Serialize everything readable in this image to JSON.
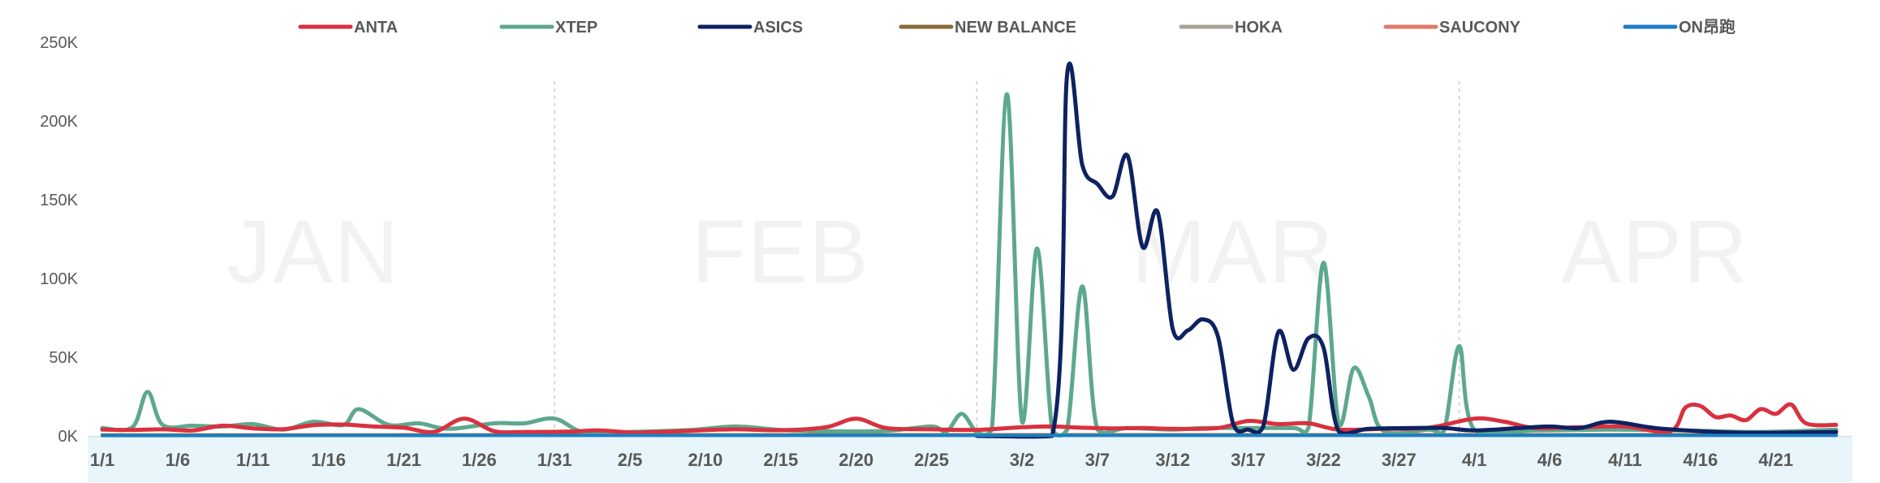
{
  "chart_data": {
    "type": "line",
    "title": "",
    "xlabel": "",
    "ylabel": "",
    "y_ticks": [
      "0K",
      "50K",
      "100K",
      "150K",
      "200K",
      "250K"
    ],
    "ylim": [
      0,
      250000
    ],
    "x_tick_labels": [
      "1/1",
      "1/6",
      "1/11",
      "1/16",
      "1/21",
      "1/26",
      "1/31",
      "2/5",
      "2/10",
      "2/15",
      "2/20",
      "2/25",
      "3/2",
      "3/7",
      "3/12",
      "3/17",
      "3/22",
      "3/27",
      "4/1",
      "4/6",
      "4/11",
      "4/16",
      "4/21"
    ],
    "month_labels": [
      {
        "text": "JAN",
        "center_date": "1/15"
      },
      {
        "text": "FEB",
        "center_date": "2/15"
      },
      {
        "text": "MAR",
        "center_date": "3/16"
      },
      {
        "text": "APR",
        "center_date": "4/13"
      }
    ],
    "month_boundaries": [
      "1/31",
      "2/28",
      "3/31"
    ],
    "legend_position": "top",
    "series": [
      {
        "name": "ANTA",
        "color": "#d9313f",
        "points": [
          [
            "1/1",
            4000
          ],
          [
            "1/3",
            3800
          ],
          [
            "1/5",
            4200
          ],
          [
            "1/7",
            3500
          ],
          [
            "1/9",
            6500
          ],
          [
            "1/11",
            4800
          ],
          [
            "1/13",
            4300
          ],
          [
            "1/15",
            6800
          ],
          [
            "1/17",
            7200
          ],
          [
            "1/19",
            6000
          ],
          [
            "1/21",
            5200
          ],
          [
            "1/23",
            2600
          ],
          [
            "1/25",
            11000
          ],
          [
            "1/27",
            3000
          ],
          [
            "1/29",
            2500
          ],
          [
            "2/1",
            2800
          ],
          [
            "2/3",
            3500
          ],
          [
            "2/5",
            2200
          ],
          [
            "2/7",
            2600
          ],
          [
            "2/9",
            3300
          ],
          [
            "2/12",
            4200
          ],
          [
            "2/15",
            3600
          ],
          [
            "2/18",
            5500
          ],
          [
            "2/20",
            11000
          ],
          [
            "2/22",
            5000
          ],
          [
            "2/25",
            4200
          ],
          [
            "2/28",
            3800
          ],
          [
            "3/2",
            5500
          ],
          [
            "3/4",
            6000
          ],
          [
            "3/6",
            5200
          ],
          [
            "3/8",
            4800
          ],
          [
            "3/10",
            5000
          ],
          [
            "3/12",
            4500
          ],
          [
            "3/15",
            5000
          ],
          [
            "3/17",
            9500
          ],
          [
            "3/19",
            7500
          ],
          [
            "3/21",
            8000
          ],
          [
            "3/23",
            4000
          ],
          [
            "3/26",
            4500
          ],
          [
            "3/29",
            5200
          ],
          [
            "4/1",
            11000
          ],
          [
            "4/3",
            9000
          ],
          [
            "4/5",
            5000
          ],
          [
            "4/8",
            5500
          ],
          [
            "4/11",
            6000
          ],
          [
            "4/14",
            3000
          ],
          [
            "4/15",
            18000
          ],
          [
            "4/16",
            19000
          ],
          [
            "4/17",
            12000
          ],
          [
            "4/18",
            13000
          ],
          [
            "4/19",
            10000
          ],
          [
            "4/20",
            17000
          ],
          [
            "4/21",
            14000
          ],
          [
            "4/22",
            20000
          ],
          [
            "4/23",
            8000
          ],
          [
            "4/25",
            7000
          ]
        ]
      },
      {
        "name": "XTEP",
        "color": "#5da88e",
        "points": [
          [
            "1/1",
            5000
          ],
          [
            "1/3",
            5500
          ],
          [
            "1/4",
            28000
          ],
          [
            "1/5",
            7000
          ],
          [
            "1/7",
            6500
          ],
          [
            "1/9",
            6000
          ],
          [
            "1/11",
            7500
          ],
          [
            "1/13",
            4000
          ],
          [
            "1/15",
            9000
          ],
          [
            "1/17",
            7000
          ],
          [
            "1/18",
            17000
          ],
          [
            "1/20",
            7000
          ],
          [
            "1/22",
            8000
          ],
          [
            "1/24",
            4500
          ],
          [
            "1/27",
            8000
          ],
          [
            "1/29",
            8000
          ],
          [
            "1/31",
            11000
          ],
          [
            "2/2",
            2000
          ],
          [
            "2/5",
            2500
          ],
          [
            "2/9",
            3800
          ],
          [
            "2/12",
            6000
          ],
          [
            "2/15",
            3800
          ],
          [
            "2/18",
            3000
          ],
          [
            "2/22",
            3200
          ],
          [
            "2/25",
            6000
          ],
          [
            "2/26",
            2800
          ],
          [
            "2/27",
            14000
          ],
          [
            "2/28",
            2500
          ],
          [
            "2/29",
            4000
          ],
          [
            "3/1",
            217000
          ],
          [
            "3/2",
            9000
          ],
          [
            "3/3",
            119000
          ],
          [
            "3/4",
            4000
          ],
          [
            "3/5",
            4000
          ],
          [
            "3/6",
            95000
          ],
          [
            "3/7",
            4000
          ],
          [
            "3/9",
            5000
          ],
          [
            "3/12",
            4000
          ],
          [
            "3/14",
            5000
          ],
          [
            "3/17",
            5000
          ],
          [
            "3/20",
            5000
          ],
          [
            "3/21",
            5000
          ],
          [
            "3/22",
            110000
          ],
          [
            "3/23",
            8000
          ],
          [
            "3/24",
            43000
          ],
          [
            "3/25",
            25000
          ],
          [
            "3/26",
            3000
          ],
          [
            "3/29",
            4000
          ],
          [
            "3/30",
            3500
          ],
          [
            "3/31",
            57000
          ],
          [
            "4/1",
            4000
          ],
          [
            "4/5",
            3500
          ],
          [
            "4/10",
            4000
          ],
          [
            "4/15",
            3500
          ],
          [
            "4/20",
            2500
          ],
          [
            "4/25",
            4000
          ]
        ]
      },
      {
        "name": "ASICS",
        "color": "#0e2260",
        "points": [
          [
            "2/28",
            0
          ],
          [
            "3/4",
            0
          ],
          [
            "3/5",
            230000
          ],
          [
            "3/6",
            172000
          ],
          [
            "3/7",
            160000
          ],
          [
            "3/8",
            152000
          ],
          [
            "3/9",
            178000
          ],
          [
            "3/10",
            120000
          ],
          [
            "3/11",
            142000
          ],
          [
            "3/12",
            68000
          ],
          [
            "3/13",
            67000
          ],
          [
            "3/14",
            74000
          ],
          [
            "3/15",
            63000
          ],
          [
            "3/16",
            8000
          ],
          [
            "3/17",
            4000
          ],
          [
            "3/18",
            6000
          ],
          [
            "3/19",
            66000
          ],
          [
            "3/20",
            42000
          ],
          [
            "3/21",
            62000
          ],
          [
            "3/22",
            56000
          ],
          [
            "3/23",
            3000
          ],
          [
            "3/25",
            4500
          ],
          [
            "3/28",
            5000
          ],
          [
            "3/30",
            5000
          ],
          [
            "4/1",
            3500
          ],
          [
            "4/4",
            5000
          ],
          [
            "4/6",
            6000
          ],
          [
            "4/8",
            5000
          ],
          [
            "4/10",
            9000
          ],
          [
            "4/13",
            5000
          ],
          [
            "4/16",
            3000
          ],
          [
            "4/19",
            2000
          ],
          [
            "4/25",
            2500
          ]
        ]
      },
      {
        "name": "NEW BALANCE",
        "color": "#8a6a3b",
        "points": [
          [
            "1/1",
            600
          ],
          [
            "2/1",
            700
          ],
          [
            "3/1",
            700
          ],
          [
            "4/1",
            700
          ],
          [
            "4/25",
            800
          ]
        ]
      },
      {
        "name": "HOKA",
        "color": "#a9a29a",
        "points": [
          [
            "1/1",
            500
          ],
          [
            "2/1",
            600
          ],
          [
            "3/1",
            700
          ],
          [
            "4/1",
            600
          ],
          [
            "4/25",
            700
          ]
        ]
      },
      {
        "name": "SAUCONY",
        "color": "#e07b6a",
        "points": [
          [
            "1/1",
            400
          ],
          [
            "2/1",
            500
          ],
          [
            "3/1",
            500
          ],
          [
            "4/1",
            600
          ],
          [
            "4/25",
            600
          ]
        ]
      },
      {
        "name": "ON昂跑",
        "color": "#1b7fc4",
        "points": [
          [
            "1/1",
            200
          ],
          [
            "2/1",
            300
          ],
          [
            "3/1",
            300
          ],
          [
            "4/1",
            300
          ],
          [
            "4/25",
            300
          ]
        ]
      }
    ]
  }
}
